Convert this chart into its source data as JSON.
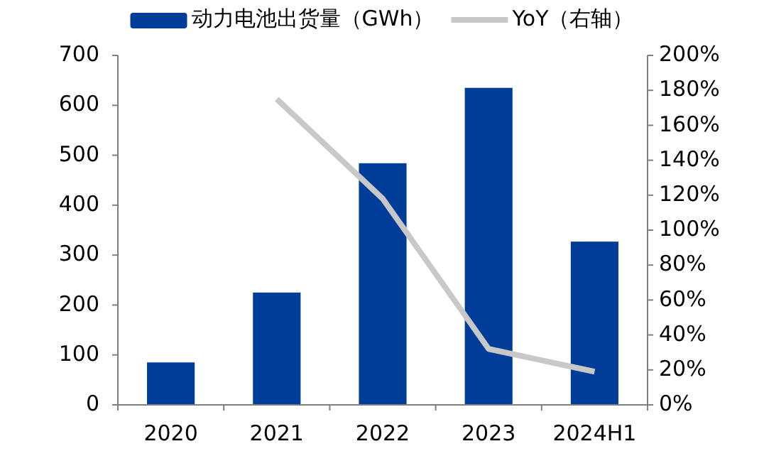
{
  "chart_data": {
    "type": "bar",
    "categories": [
      "2020",
      "2021",
      "2022",
      "2023",
      "2024H1"
    ],
    "series": [
      {
        "name": "动力电池出货量（GWh）",
        "color": "#003d99",
        "values": [
          85,
          225,
          484,
          635,
          327
        ]
      },
      {
        "name": "YoY（右轴）",
        "type": "line",
        "axis": "y2",
        "color": "#c8c8c8",
        "values": [
          null,
          175,
          118,
          32,
          19
        ]
      }
    ],
    "ylim": [
      0,
      700
    ],
    "yticks": [
      0,
      100,
      200,
      300,
      400,
      500,
      600,
      700
    ],
    "y2lim": [
      0,
      200
    ],
    "y2ticks": [
      {
        "value": 0,
        "label": "0%"
      },
      {
        "value": 20,
        "label": "20%"
      },
      {
        "value": 40,
        "label": "40%"
      },
      {
        "value": 60,
        "label": "60%"
      },
      {
        "value": 80,
        "label": "80%"
      },
      {
        "value": 100,
        "label": "100%"
      },
      {
        "value": 120,
        "label": "120%"
      },
      {
        "value": 140,
        "label": "140%"
      },
      {
        "value": 160,
        "label": "160%"
      },
      {
        "value": 180,
        "label": "180%"
      },
      {
        "value": 200,
        "label": "200%"
      }
    ],
    "legend": "top",
    "grid": false
  }
}
